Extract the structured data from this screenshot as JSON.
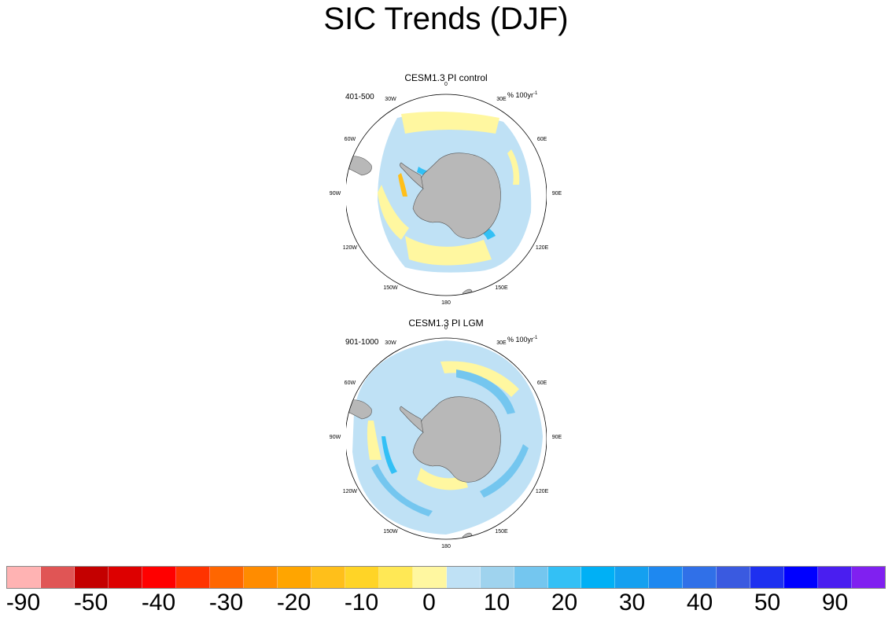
{
  "title": "SIC Trends (DJF)",
  "panels": [
    {
      "title": "CESM1.3 PI control",
      "period": "401-500",
      "unit": "% 100yr",
      "unit_sup": "-1"
    },
    {
      "title": "CESM1.3 PI LGM",
      "period": "901-1000",
      "unit": "% 100yr",
      "unit_sup": "-1"
    }
  ],
  "longitude_labels": [
    "0",
    "30E",
    "60E",
    "90E",
    "120E",
    "150E",
    "180",
    "150W",
    "120W",
    "90W",
    "60W",
    "30W"
  ],
  "colorbar": {
    "colors": [
      "#ffb3b3",
      "#e05555",
      "#c40000",
      "#dd0000",
      "#ff0000",
      "#ff3300",
      "#ff6600",
      "#ff8c00",
      "#ffa500",
      "#ffbf1a",
      "#ffd426",
      "#ffe855",
      "#fff7a0",
      "#bfe1f5",
      "#9fd3ee",
      "#74c6ef",
      "#33c0f5",
      "#00b0f5",
      "#14a0f0",
      "#1e88f0",
      "#3070e8",
      "#3a5ae0",
      "#1e30f0",
      "#0000ff",
      "#4a1ef0",
      "#8020f0"
    ],
    "labels": [
      "-90",
      "-50",
      "-40",
      "-30",
      "-20",
      "-10",
      "0",
      "10",
      "20",
      "30",
      "40",
      "50",
      "90"
    ]
  },
  "colors": {
    "land": "#b8b8b8",
    "ocean_background": "#ffffff",
    "map_border": "#000000"
  }
}
